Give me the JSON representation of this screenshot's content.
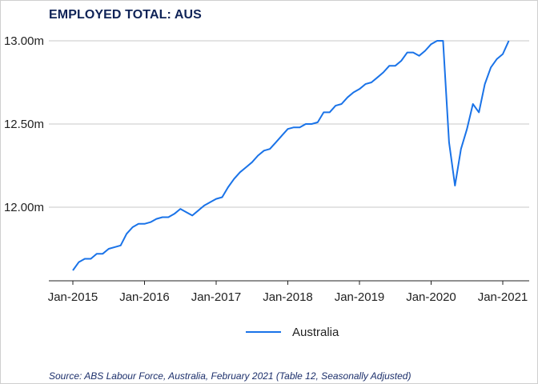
{
  "title": "EMPLOYED TOTAL: AUS",
  "source": "Source: ABS Labour Force, Australia, February 2021 (Table 12, Seasonally Adjusted)",
  "colors": {
    "series": "#1a73e8",
    "title": "#0f2357",
    "grid": "#c8c8c8"
  },
  "chart_data": {
    "type": "line",
    "title": "EMPLOYED TOTAL: AUS",
    "xlabel": "",
    "ylabel": "",
    "x_ticks": [
      "Jan-2015",
      "Jan-2016",
      "Jan-2017",
      "Jan-2018",
      "Jan-2019",
      "Jan-2020",
      "Jan-2021"
    ],
    "y_ticks": [
      "12.00m",
      "12.50m",
      "13.00m"
    ],
    "ylim": [
      11.6,
      13.0
    ],
    "y_tick_values": [
      12.0,
      12.5,
      13.0
    ],
    "grid": "horizontal",
    "legend_position": "bottom",
    "series": [
      {
        "name": "Australia",
        "x": [
          "2015-01",
          "2015-02",
          "2015-03",
          "2015-04",
          "2015-05",
          "2015-06",
          "2015-07",
          "2015-08",
          "2015-09",
          "2015-10",
          "2015-11",
          "2015-12",
          "2016-01",
          "2016-02",
          "2016-03",
          "2016-04",
          "2016-05",
          "2016-06",
          "2016-07",
          "2016-08",
          "2016-09",
          "2016-10",
          "2016-11",
          "2016-12",
          "2017-01",
          "2017-02",
          "2017-03",
          "2017-04",
          "2017-05",
          "2017-06",
          "2017-07",
          "2017-08",
          "2017-09",
          "2017-10",
          "2017-11",
          "2017-12",
          "2018-01",
          "2018-02",
          "2018-03",
          "2018-04",
          "2018-05",
          "2018-06",
          "2018-07",
          "2018-08",
          "2018-09",
          "2018-10",
          "2018-11",
          "2018-12",
          "2019-01",
          "2019-02",
          "2019-03",
          "2019-04",
          "2019-05",
          "2019-06",
          "2019-07",
          "2019-08",
          "2019-09",
          "2019-10",
          "2019-11",
          "2019-12",
          "2020-01",
          "2020-02",
          "2020-03",
          "2020-04",
          "2020-05",
          "2020-06",
          "2020-07",
          "2020-08",
          "2020-09",
          "2020-10",
          "2020-11",
          "2020-12",
          "2021-01",
          "2021-02"
        ],
        "values": [
          11.62,
          11.67,
          11.69,
          11.69,
          11.72,
          11.72,
          11.75,
          11.76,
          11.77,
          11.84,
          11.88,
          11.9,
          11.9,
          11.91,
          11.93,
          11.94,
          11.94,
          11.96,
          11.99,
          11.97,
          11.95,
          11.98,
          12.01,
          12.03,
          12.05,
          12.06,
          12.12,
          12.17,
          12.21,
          12.24,
          12.27,
          12.31,
          12.34,
          12.35,
          12.39,
          12.43,
          12.47,
          12.48,
          12.48,
          12.5,
          12.5,
          12.51,
          12.57,
          12.57,
          12.61,
          12.62,
          12.66,
          12.69,
          12.71,
          12.74,
          12.75,
          12.78,
          12.81,
          12.85,
          12.85,
          12.88,
          12.93,
          12.93,
          12.91,
          12.94,
          12.98,
          13.0,
          13.0,
          12.39,
          12.13,
          12.35,
          12.47,
          12.62,
          12.57,
          12.74,
          12.84,
          12.89,
          12.92,
          13.0
        ]
      }
    ]
  }
}
